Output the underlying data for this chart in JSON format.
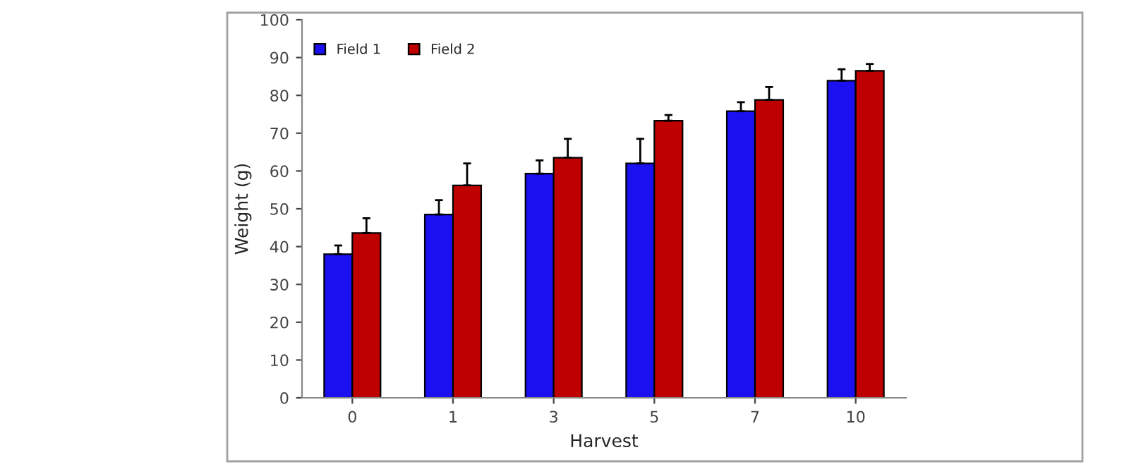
{
  "chart_data": {
    "type": "bar",
    "xlabel": "Harvest",
    "ylabel": "Weight (g)",
    "categories": [
      "0",
      "1",
      "3",
      "5",
      "7",
      "10"
    ],
    "series": [
      {
        "name": "Field 1",
        "color": "#1a10f0",
        "values": [
          38,
          48.5,
          59.3,
          62,
          75.8,
          83.9
        ],
        "errors": [
          [
            38,
            40.3
          ],
          [
            48.5,
            52.3
          ],
          [
            59.3,
            62.8
          ],
          [
            62,
            68.5
          ],
          [
            75.8,
            78.2
          ],
          [
            83.9,
            86.9
          ]
        ]
      },
      {
        "name": "Field 2",
        "color": "#bf0000",
        "values": [
          43.6,
          56.2,
          63.5,
          73.3,
          78.8,
          86.5
        ],
        "errors": [
          [
            43.6,
            47.5
          ],
          [
            56.2,
            62
          ],
          [
            63.5,
            68.5
          ],
          [
            73.3,
            74.8
          ],
          [
            78.8,
            82.2
          ],
          [
            86.5,
            88.3
          ]
        ]
      }
    ],
    "ylim": [
      0,
      100
    ],
    "yticks": [
      0,
      10,
      20,
      30,
      40,
      50,
      60,
      70,
      80,
      90,
      100
    ],
    "legend": "top left",
    "grid": false
  }
}
